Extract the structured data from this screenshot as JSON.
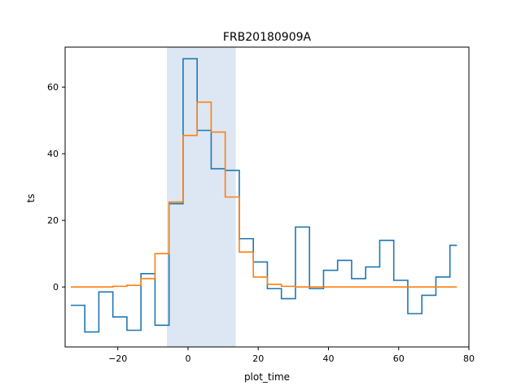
{
  "chart_data": {
    "type": "line",
    "title": "FRB20180909A",
    "xlabel": "plot_time",
    "ylabel": "ts",
    "xlim": [
      -35,
      80
    ],
    "ylim": [
      -18,
      72
    ],
    "xticks": [
      -20,
      0,
      20,
      40,
      60,
      80
    ],
    "yticks": [
      0,
      20,
      40,
      60
    ],
    "xtick_labels": [
      "−20",
      "0",
      "20",
      "40",
      "60",
      "80"
    ],
    "ytick_labels": [
      "0",
      "20",
      "40",
      "60"
    ],
    "grid": false,
    "highlight_span": {
      "x_start": -6.0,
      "x_end": 13.6,
      "color": "#dce7f3"
    },
    "step_x": [
      -33.4,
      -29.4,
      -25.4,
      -21.4,
      -17.4,
      -13.4,
      -9.4,
      -5.4,
      -1.4,
      2.6,
      6.6,
      10.6,
      14.6,
      18.6,
      22.6,
      26.6,
      30.6,
      34.6,
      38.6,
      42.6,
      46.6,
      50.6,
      54.6,
      58.6,
      62.6,
      66.6,
      70.6,
      74.6
    ],
    "step_x_end": 76.6,
    "series": [
      {
        "color": "#1f77b4",
        "values": [
          -5.5,
          -13.5,
          -1.5,
          -9.0,
          -13.0,
          4.0,
          -11.5,
          25.0,
          68.5,
          47.0,
          35.5,
          35.0,
          14.5,
          7.5,
          -0.5,
          -3.5,
          18.0,
          -0.5,
          5.0,
          8.0,
          2.5,
          6.0,
          14.0,
          2.0,
          -8.0,
          -2.5,
          3.0,
          12.5
        ]
      },
      {
        "color": "#ff7f0e",
        "values": [
          0.0,
          0.0,
          0.0,
          0.2,
          0.5,
          2.5,
          10.0,
          25.5,
          45.5,
          55.5,
          46.5,
          27.0,
          10.5,
          3.0,
          0.8,
          0.2,
          0.0,
          0.0,
          0.0,
          0.0,
          0.0,
          0.0,
          0.0,
          0.0,
          0.0,
          0.0,
          0.0,
          0.0
        ]
      }
    ]
  }
}
